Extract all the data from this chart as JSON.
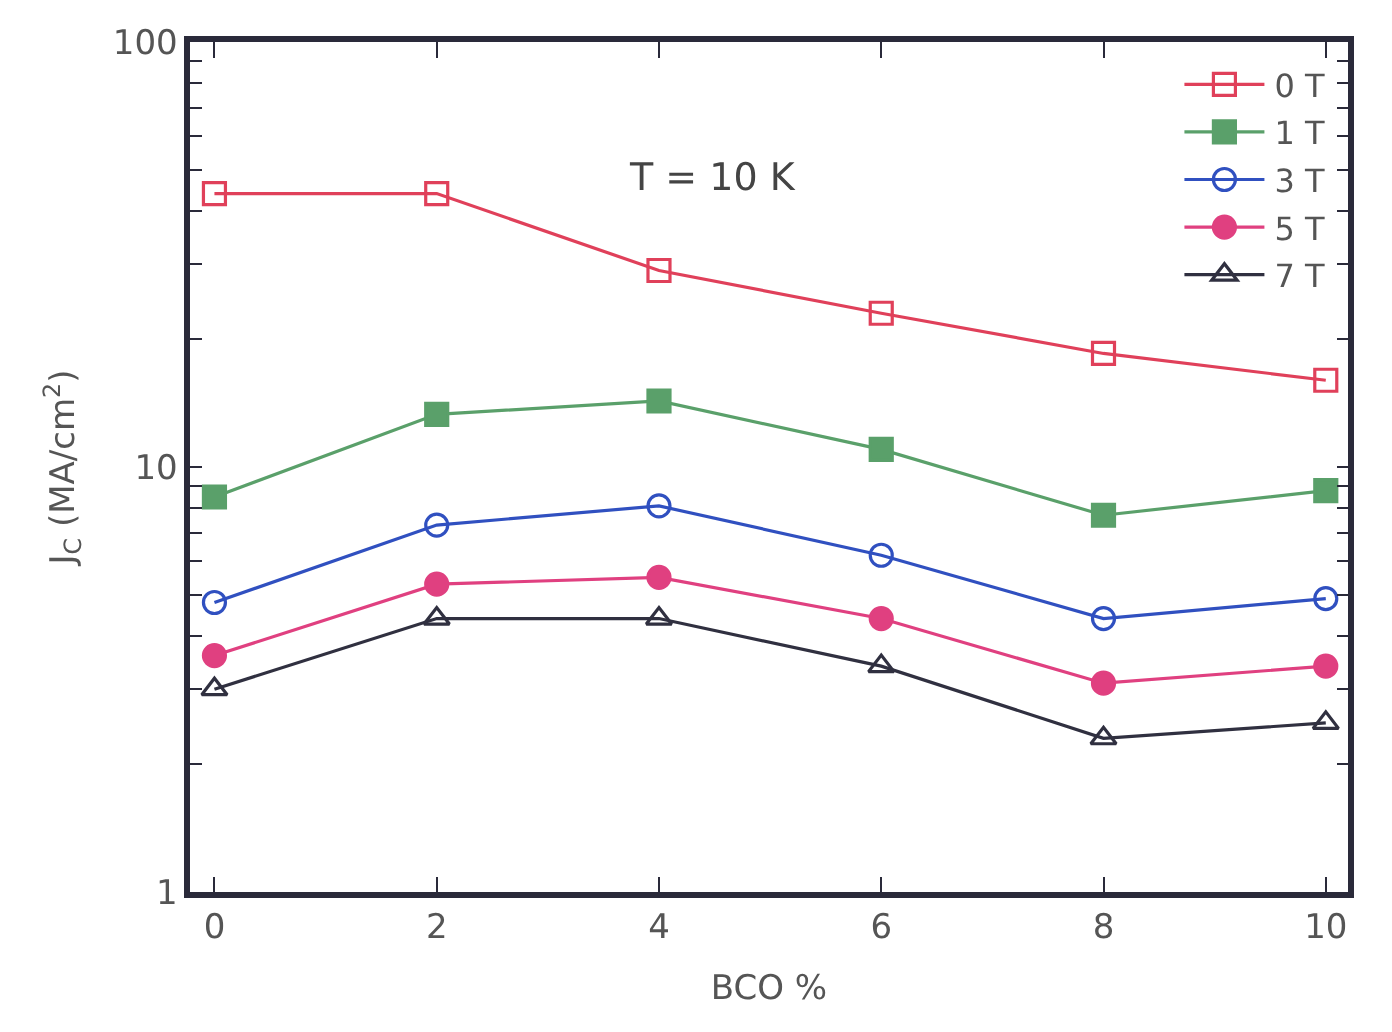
{
  "chart_data": {
    "type": "line",
    "x": [
      0,
      2,
      4,
      6,
      8,
      10
    ],
    "xlabel": "BCO %",
    "ylabel": "J$_{C}$ (MA/cm$^{2}$)",
    "xlim": [
      -0.22,
      10.2
    ],
    "xticks": [
      0,
      2,
      4,
      6,
      8,
      10
    ],
    "ylim": [
      1,
      100
    ],
    "log": true,
    "yticks": [
      1,
      {
        "value": 2,
        "label": null
      },
      {
        "value": 3,
        "label": null
      },
      {
        "value": 4,
        "label": null
      },
      {
        "value": 5,
        "label": null
      },
      {
        "value": 6,
        "label": null
      },
      {
        "value": 7,
        "label": null
      },
      {
        "value": 8,
        "label": null
      },
      {
        "value": 9,
        "label": null
      },
      10,
      {
        "value": 20,
        "label": null
      },
      {
        "value": 30,
        "label": null
      },
      {
        "value": 40,
        "label": null
      },
      {
        "value": 50,
        "label": null
      },
      {
        "value": 60,
        "label": null
      },
      {
        "value": 70,
        "label": null
      },
      {
        "value": 80,
        "label": null
      },
      {
        "value": 90,
        "label": null
      },
      100
    ],
    "annotations": [
      "T = 10 K"
    ],
    "legend": "top right",
    "line_style": "solid",
    "series": [
      {
        "name": "0 T",
        "color": "#e0405a",
        "marker": "square",
        "values": [
          44,
          44,
          29,
          23,
          18.5,
          16
        ]
      },
      {
        "name": "1 T",
        "color": "#5aa06a",
        "marker": "square",
        "values": [
          8.5,
          13.3,
          14.3,
          11,
          7.7,
          8.8
        ]
      },
      {
        "name": "3 T",
        "color": "#3050c0",
        "marker": "circle",
        "values": [
          4.8,
          7.3,
          8.1,
          6.2,
          4.4,
          4.9
        ]
      },
      {
        "name": "5 T",
        "color": "#e04080",
        "marker": "circle",
        "values": [
          3.6,
          5.3,
          5.5,
          4.4,
          3.1,
          3.4
        ]
      },
      {
        "name": "7 T",
        "color": "#303040",
        "marker": "triangle",
        "values": [
          3.0,
          4.4,
          4.4,
          3.4,
          2.3,
          2.5
        ]
      }
    ]
  }
}
